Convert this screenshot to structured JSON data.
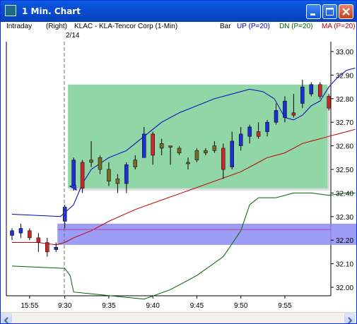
{
  "window": {
    "title": "1 Min. Chart"
  },
  "header": {
    "interval": "Intraday",
    "scale_side": "(Right)",
    "symbol_desc": "KLAC - KLA-Tencor Corp  (1-Min)",
    "bar_label": "Bar",
    "up_label": "UP (P=20)",
    "dn_label": "DN (P=20)",
    "ma_label": "MA (P=20)",
    "date_marker": "2/14"
  },
  "chart_data": {
    "type": "candlestick",
    "x_ticks": [
      "15:55",
      "9:30",
      "9:35",
      "9:40",
      "9:45",
      "9:50",
      "9:55"
    ],
    "y_ticks": [
      "33.00",
      "32.90",
      "32.80",
      "32.70",
      "32.60",
      "32.50",
      "32.40",
      "32.30",
      "32.20",
      "32.10",
      "32.00"
    ],
    "ylim": [
      31.98,
      33.02
    ],
    "date_break": "2/14",
    "candles": [
      {
        "t": "15:53",
        "o": 32.22,
        "h": 32.25,
        "l": 32.2,
        "c": 32.24
      },
      {
        "t": "15:54",
        "o": 32.23,
        "h": 32.27,
        "l": 32.21,
        "c": 32.25
      },
      {
        "t": "15:55",
        "o": 32.24,
        "h": 32.25,
        "l": 32.2,
        "c": 32.21
      },
      {
        "t": "15:56",
        "o": 32.21,
        "h": 32.23,
        "l": 32.15,
        "c": 32.19
      },
      {
        "t": "15:57",
        "o": 32.19,
        "h": 32.21,
        "l": 32.13,
        "c": 32.15
      },
      {
        "t": "15:58",
        "o": 32.16,
        "h": 32.19,
        "l": 32.15,
        "c": 32.17
      },
      {
        "t": "9:30",
        "o": 32.28,
        "h": 32.35,
        "l": 32.25,
        "c": 32.34
      },
      {
        "t": "9:31",
        "o": 32.43,
        "h": 32.55,
        "l": 32.41,
        "c": 32.54
      },
      {
        "t": "9:32",
        "o": 32.53,
        "h": 32.54,
        "l": 32.4,
        "c": 32.42
      },
      {
        "t": "9:33",
        "o": 32.53,
        "h": 32.62,
        "l": 32.51,
        "c": 32.54
      },
      {
        "t": "9:34",
        "o": 32.55,
        "h": 32.56,
        "l": 32.48,
        "c": 32.5
      },
      {
        "t": "9:35",
        "o": 32.5,
        "h": 32.53,
        "l": 32.43,
        "c": 32.45
      },
      {
        "t": "9:36",
        "o": 32.44,
        "h": 32.48,
        "l": 32.4,
        "c": 32.46
      },
      {
        "t": "9:37",
        "o": 32.44,
        "h": 32.53,
        "l": 32.4,
        "c": 32.52
      },
      {
        "t": "9:38",
        "o": 32.51,
        "h": 32.56,
        "l": 32.5,
        "c": 32.54
      },
      {
        "t": "9:39",
        "o": 32.55,
        "h": 32.68,
        "l": 32.55,
        "c": 32.65
      },
      {
        "t": "9:40",
        "o": 32.65,
        "h": 32.66,
        "l": 32.52,
        "c": 32.56
      },
      {
        "t": "9:41",
        "o": 32.59,
        "h": 32.63,
        "l": 32.56,
        "c": 32.61
      },
      {
        "t": "9:42",
        "o": 32.6,
        "h": 32.6,
        "l": 32.52,
        "c": 32.6
      },
      {
        "t": "9:43",
        "o": 32.59,
        "h": 32.6,
        "l": 32.56,
        "c": 32.57
      },
      {
        "t": "9:44",
        "o": 32.53,
        "h": 32.55,
        "l": 32.5,
        "c": 32.53
      },
      {
        "t": "9:45",
        "o": 32.54,
        "h": 32.59,
        "l": 32.53,
        "c": 32.58
      },
      {
        "t": "9:46",
        "o": 32.57,
        "h": 32.59,
        "l": 32.56,
        "c": 32.58
      },
      {
        "t": "9:47",
        "o": 32.58,
        "h": 32.62,
        "l": 32.57,
        "c": 32.6
      },
      {
        "t": "9:48",
        "o": 32.59,
        "h": 32.61,
        "l": 32.46,
        "c": 32.5
      },
      {
        "t": "9:49",
        "o": 32.51,
        "h": 32.66,
        "l": 32.5,
        "c": 32.62
      },
      {
        "t": "9:50",
        "o": 32.6,
        "h": 32.68,
        "l": 32.58,
        "c": 32.65
      },
      {
        "t": "9:51",
        "o": 32.64,
        "h": 32.69,
        "l": 32.61,
        "c": 32.68
      },
      {
        "t": "9:52",
        "o": 32.66,
        "h": 32.7,
        "l": 32.63,
        "c": 32.64
      },
      {
        "t": "9:53",
        "o": 32.66,
        "h": 32.71,
        "l": 32.64,
        "c": 32.7
      },
      {
        "t": "9:54",
        "o": 32.7,
        "h": 32.78,
        "l": 32.69,
        "c": 32.75
      },
      {
        "t": "9:55",
        "o": 32.72,
        "h": 32.81,
        "l": 32.7,
        "c": 32.79
      },
      {
        "t": "9:56",
        "o": 32.74,
        "h": 32.82,
        "l": 32.72,
        "c": 32.73
      },
      {
        "t": "9:57",
        "o": 32.78,
        "h": 32.88,
        "l": 32.76,
        "c": 32.85
      },
      {
        "t": "9:58",
        "o": 32.82,
        "h": 32.87,
        "l": 32.81,
        "c": 32.86
      },
      {
        "t": "9:59",
        "o": 32.86,
        "h": 32.87,
        "l": 32.8,
        "c": 32.81
      },
      {
        "t": "10:00",
        "o": 32.81,
        "h": 32.82,
        "l": 32.75,
        "c": 32.76
      }
    ],
    "series": [
      {
        "name": "UP (P=20)",
        "color": "#0000c0",
        "points": [
          [
            0,
            32.31
          ],
          [
            5.5,
            32.3
          ],
          [
            7,
            32.35
          ],
          [
            8,
            32.44
          ],
          [
            9,
            32.5
          ],
          [
            11,
            32.55
          ],
          [
            13,
            32.58
          ],
          [
            15,
            32.64
          ],
          [
            17,
            32.7
          ],
          [
            19,
            32.74
          ],
          [
            21,
            32.77
          ],
          [
            23,
            32.8
          ],
          [
            25,
            32.82
          ],
          [
            27,
            32.84
          ],
          [
            28.5,
            32.83
          ],
          [
            29.8,
            32.8
          ],
          [
            31,
            32.72
          ],
          [
            32,
            32.71
          ],
          [
            33,
            32.73
          ],
          [
            34,
            32.77
          ],
          [
            35,
            32.79
          ],
          [
            36,
            32.85
          ],
          [
            37,
            32.89
          ],
          [
            38,
            32.92
          ],
          [
            39,
            32.93
          ]
        ]
      },
      {
        "name": "DN (P=20)",
        "color": "#006400",
        "points": [
          [
            0,
            32.09
          ],
          [
            6,
            32.08
          ],
          [
            6.6,
            32.05
          ],
          [
            7,
            31.98
          ],
          [
            15,
            31.95
          ],
          [
            18,
            31.99
          ],
          [
            21,
            32.05
          ],
          [
            24,
            32.13
          ],
          [
            26,
            32.24
          ],
          [
            27,
            32.35
          ],
          [
            28,
            32.38
          ],
          [
            30,
            32.38
          ],
          [
            32,
            32.4
          ],
          [
            34,
            32.4
          ],
          [
            36,
            32.39
          ],
          [
            38,
            32.4
          ],
          [
            39,
            32.4
          ]
        ]
      },
      {
        "name": "MA (P=20)",
        "color": "#c00000",
        "points": [
          [
            0,
            32.19
          ],
          [
            3,
            32.19
          ],
          [
            5,
            32.18
          ],
          [
            6,
            32.19
          ],
          [
            7,
            32.21
          ],
          [
            9,
            32.24
          ],
          [
            11,
            32.28
          ],
          [
            14,
            32.33
          ],
          [
            17,
            32.37
          ],
          [
            20,
            32.41
          ],
          [
            23,
            32.45
          ],
          [
            26,
            32.49
          ],
          [
            27,
            32.51
          ],
          [
            28,
            32.53
          ],
          [
            29,
            32.55
          ],
          [
            30,
            32.56
          ],
          [
            31,
            32.57
          ],
          [
            32,
            32.59
          ],
          [
            33,
            32.61
          ],
          [
            34,
            32.62
          ],
          [
            35,
            32.63
          ],
          [
            36,
            32.64
          ],
          [
            37,
            32.65
          ],
          [
            38,
            32.66
          ],
          [
            39,
            32.67
          ]
        ]
      }
    ],
    "pink_line_value": 32.245,
    "zones": [
      {
        "color": "#90d6a6",
        "x_from": "9:31",
        "x_to": "10:00",
        "y_from": 32.42,
        "y_to": 32.86
      },
      {
        "color": "#8c8cf4",
        "x_from": "15:58",
        "x_to": "10:00+",
        "y_from": 32.18,
        "y_to": 32.27
      }
    ]
  },
  "colors": {
    "up_candle": "#1e2fd2",
    "down_candle": "#c82828",
    "neutral_candle": "#7a6a2a",
    "up_label": "#0000c0",
    "dn_label": "#006400",
    "ma_label": "#c00000"
  }
}
